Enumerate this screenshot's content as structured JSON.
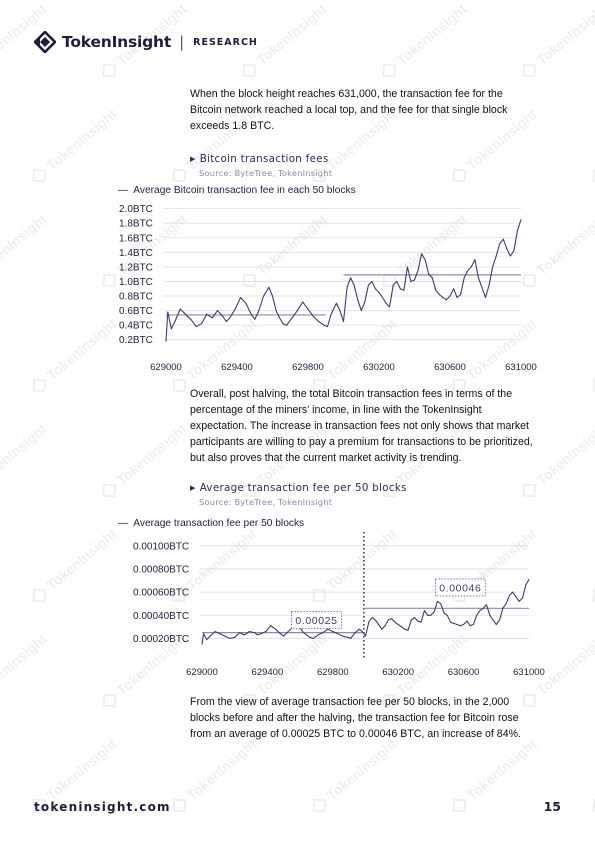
{
  "header": {
    "brand": "TokenInsight",
    "separator": "|",
    "section": "RESEARCH"
  },
  "watermark": {
    "text": "TokenInsight"
  },
  "paragraphs": {
    "p1": "When the block height reaches 631,000, the transaction fee for the Bitcoin network reached a local top, and the fee for that single block exceeds 1.8 BTC.",
    "p2": "Overall, post halving, the total Bitcoin transaction fees in terms of the percentage of the miners' income, in line with the TokenInsight expectation. The increase in transaction fees not only shows that market participants are willing to pay a premium for transactions to be prioritized, but also proves that the current market activity is trending.",
    "p3": "From the view of average transaction fee per 50 blocks, in the 2,000 blocks before and after the halving, the transaction fee for Bitcoin rose from an average of 0.00025 BTC to 0.00046 BTC, an increase of 84%."
  },
  "chart1": {
    "title": "Bitcoin transaction fees",
    "source": "Source: ByteTree, TokenInsight",
    "legend": "Average Bitcoin transaction fee in each 50 blocks"
  },
  "chart2": {
    "title": "Average transaction fee per 50 blocks",
    "source": "Source: ByteTree, TokenInsight",
    "legend": "Average transaction fee per 50 blocks"
  },
  "chart_data": [
    {
      "type": "line",
      "title": "Bitcoin transaction fees",
      "xlabel": "",
      "ylabel": "",
      "xlim": [
        629000,
        631000
      ],
      "ylim": [
        0.1,
        2.05
      ],
      "xticks": [
        "629000",
        "629400",
        "629800",
        "630200",
        "630600",
        "631000"
      ],
      "xtick_values": [
        629000,
        629400,
        629800,
        630200,
        630600,
        631000
      ],
      "yticks": [
        "0.2BTC",
        "0.4BTC",
        "0.6BTC",
        "0.8BTC",
        "1.0BTC",
        "1.2BTC",
        "1.4BTC",
        "1.6BTC",
        "1.8BTC",
        "2.0BTC"
      ],
      "ytick_values": [
        0.2,
        0.4,
        0.6,
        0.8,
        1.0,
        1.2,
        1.4,
        1.6,
        1.8,
        2.0
      ],
      "grid": true,
      "series": [
        {
          "name": "Average Bitcoin transaction fee in each 50 blocks",
          "color": "#3c3c6e",
          "x": [
            629000,
            629010,
            629030,
            629050,
            629080,
            629110,
            629140,
            629170,
            629200,
            629230,
            629260,
            629290,
            629320,
            629340,
            629360,
            629390,
            629420,
            629450,
            629480,
            629500,
            629520,
            629550,
            629580,
            629600,
            629620,
            629640,
            629660,
            629680,
            629710,
            629740,
            629770,
            629800,
            629830,
            629860,
            629890,
            629910,
            629930,
            629960,
            629980,
            630000,
            630020,
            630040,
            630060,
            630080,
            630100,
            630120,
            630140,
            630160,
            630180,
            630200,
            630220,
            630240,
            630260,
            630280,
            630300,
            630320,
            630340,
            630360,
            630380,
            630400,
            630420,
            630440,
            630460,
            630480,
            630500,
            630520,
            630540,
            630560,
            630580,
            630600,
            630620,
            630640,
            630660,
            630680,
            630700,
            630720,
            630740,
            630760,
            630780,
            630800,
            630820,
            630840,
            630860,
            630880,
            630900,
            630920,
            630940,
            630960,
            630980,
            631000
          ],
          "y": [
            0.18,
            0.58,
            0.35,
            0.45,
            0.62,
            0.55,
            0.48,
            0.38,
            0.42,
            0.55,
            0.5,
            0.6,
            0.52,
            0.45,
            0.5,
            0.62,
            0.78,
            0.7,
            0.55,
            0.48,
            0.58,
            0.8,
            0.92,
            0.8,
            0.6,
            0.5,
            0.42,
            0.4,
            0.5,
            0.6,
            0.72,
            0.62,
            0.52,
            0.45,
            0.4,
            0.38,
            0.55,
            0.7,
            0.6,
            0.45,
            0.92,
            1.05,
            0.95,
            0.75,
            0.6,
            0.72,
            0.95,
            1.0,
            0.9,
            0.85,
            0.78,
            0.7,
            0.65,
            0.95,
            1.0,
            0.9,
            0.88,
            1.2,
            1.0,
            1.02,
            1.15,
            1.38,
            1.3,
            1.1,
            1.05,
            0.88,
            0.82,
            0.78,
            0.75,
            0.8,
            0.9,
            0.78,
            0.82,
            1.05,
            1.15,
            1.2,
            1.3,
            1.05,
            0.92,
            0.78,
            0.95,
            1.2,
            1.35,
            1.52,
            1.58,
            1.45,
            1.35,
            1.42,
            1.7,
            1.85
          ]
        }
      ],
      "reference_lines": [
        {
          "x_from": 629000,
          "x_to": 629900,
          "y": 0.54,
          "color": "#8b8baa"
        },
        {
          "x_from": 630000,
          "x_to": 631000,
          "y": 1.09,
          "color": "#8b8baa"
        }
      ]
    },
    {
      "type": "line",
      "title": "Average transaction fee per 50 blocks",
      "xlabel": "",
      "ylabel": "",
      "xlim": [
        629000,
        631000
      ],
      "ylim": [
        0.0001,
        0.00105
      ],
      "xticks": [
        "629000",
        "629400",
        "629800",
        "630200",
        "630600",
        "631000"
      ],
      "xtick_values": [
        629000,
        629400,
        629800,
        630200,
        630600,
        631000
      ],
      "yticks": [
        "0.00020BTC",
        "0.00040BTC",
        "0.00060BTC",
        "0.00080BTC",
        "0.00100BTC"
      ],
      "ytick_values": [
        0.0002,
        0.0004,
        0.0006,
        0.0008,
        0.001
      ],
      "grid": true,
      "halving_x": 629990,
      "series": [
        {
          "name": "Average transaction fee per 50 blocks",
          "color": "#3c3c6e",
          "x": [
            629000,
            629010,
            629030,
            629050,
            629080,
            629110,
            629140,
            629170,
            629200,
            629230,
            629260,
            629290,
            629320,
            629340,
            629360,
            629390,
            629420,
            629450,
            629480,
            629500,
            629520,
            629550,
            629580,
            629600,
            629620,
            629640,
            629660,
            629680,
            629710,
            629740,
            629770,
            629800,
            629830,
            629860,
            629890,
            629910,
            629930,
            629960,
            629980,
            630000,
            630020,
            630040,
            630060,
            630080,
            630100,
            630120,
            630140,
            630160,
            630180,
            630200,
            630220,
            630240,
            630260,
            630280,
            630300,
            630320,
            630340,
            630360,
            630380,
            630400,
            630420,
            630440,
            630460,
            630480,
            630500,
            630520,
            630540,
            630560,
            630580,
            630600,
            630620,
            630640,
            630660,
            630680,
            630700,
            630720,
            630740,
            630760,
            630780,
            630800,
            630820,
            630840,
            630860,
            630880,
            630900,
            630920,
            630940,
            630960,
            630980,
            631000
          ],
          "y": [
            0.00015,
            0.00024,
            0.00019,
            0.00022,
            0.00026,
            0.00024,
            0.00022,
            0.0002,
            0.00021,
            0.00025,
            0.00023,
            0.00026,
            0.00025,
            0.00023,
            0.00024,
            0.00026,
            0.00031,
            0.00028,
            0.00024,
            0.00022,
            0.00025,
            0.00029,
            0.00034,
            0.00029,
            0.00025,
            0.00023,
            0.00021,
            0.0002,
            0.00023,
            0.00025,
            0.00028,
            0.00026,
            0.00024,
            0.00022,
            0.00021,
            0.0002,
            0.00024,
            0.00028,
            0.00026,
            0.00022,
            0.00034,
            0.00038,
            0.00036,
            0.00032,
            0.00028,
            0.00031,
            0.00036,
            0.00037,
            0.00034,
            0.00032,
            0.0003,
            0.00028,
            0.00027,
            0.00036,
            0.00038,
            0.00035,
            0.00034,
            0.00044,
            0.0004,
            0.0004,
            0.00043,
            0.00052,
            0.0005,
            0.00042,
            0.0004,
            0.00034,
            0.00033,
            0.00032,
            0.00031,
            0.00032,
            0.00035,
            0.00031,
            0.00032,
            0.0004,
            0.00044,
            0.00046,
            0.00049,
            0.0004,
            0.00036,
            0.00032,
            0.00036,
            0.00046,
            0.0005,
            0.00057,
            0.0006,
            0.00056,
            0.00052,
            0.00055,
            0.00066,
            0.00071
          ]
        }
      ],
      "reference_lines": [
        {
          "x_from": 629000,
          "x_to": 629990,
          "y": 0.00025,
          "color": "#8b8baa"
        },
        {
          "x_from": 629990,
          "x_to": 631000,
          "y": 0.00046,
          "color": "#8b8baa"
        }
      ],
      "annotations": [
        {
          "text": "0.00025",
          "x": 629700,
          "y": 0.00036
        },
        {
          "text": "0.00046",
          "x": 630580,
          "y": 0.00064
        }
      ]
    }
  ],
  "footer": {
    "url": "tokeninsight.com",
    "page": "15"
  }
}
